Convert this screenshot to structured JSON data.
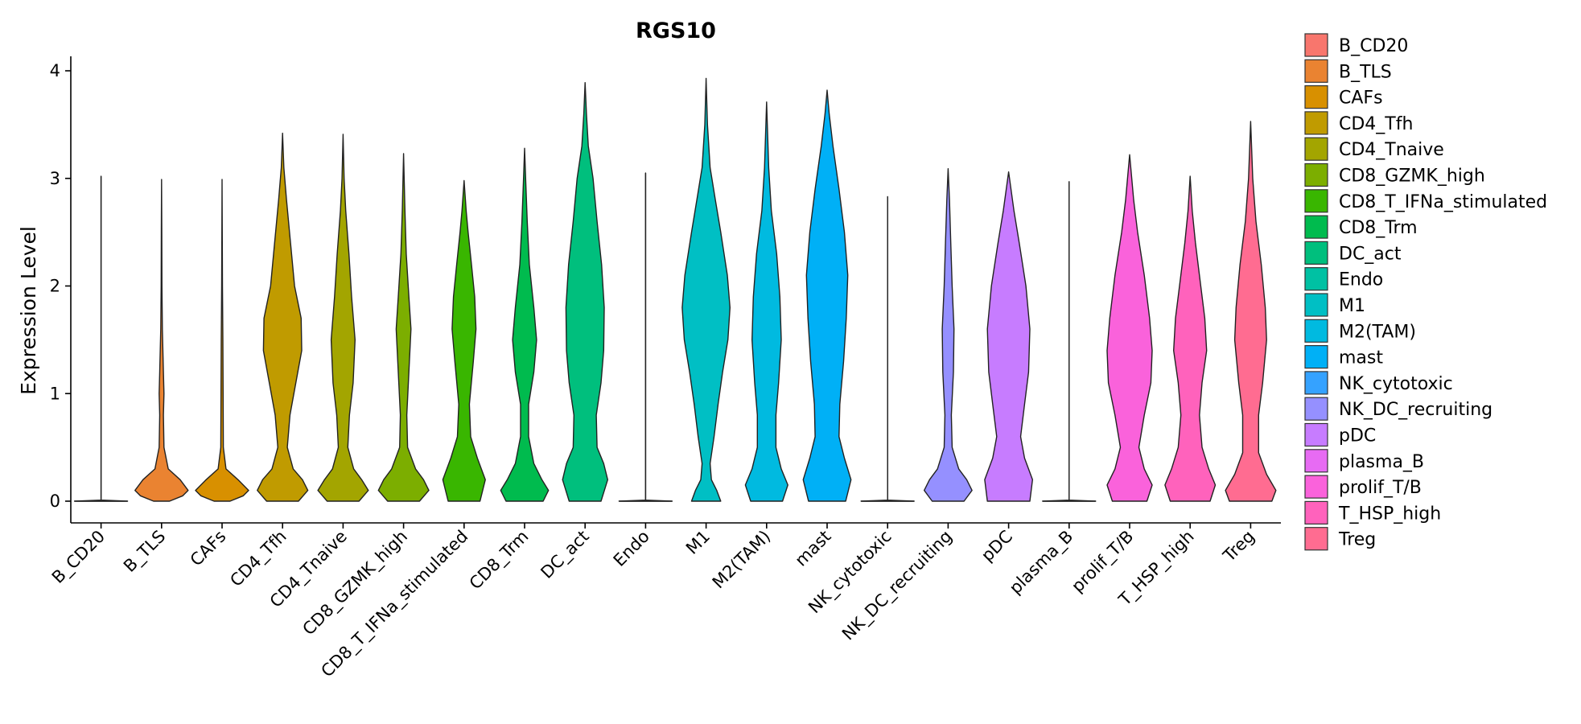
{
  "chart_data": {
    "type": "violin",
    "title": "RGS10",
    "xlabel": "",
    "ylabel": "Expression Level",
    "ylim": [
      -0.2,
      4.15
    ],
    "yticks": [
      0,
      1,
      2,
      3,
      4
    ],
    "legend_position": "right",
    "categories": [
      "B_CD20",
      "B_TLS",
      "CAFs",
      "CD4_Tfh",
      "CD4_Tnaive",
      "CD8_GZMK_high",
      "CD8_T_IFNa_stimulated",
      "CD8_Trm",
      "DC_act",
      "Endo",
      "M1",
      "M2(TAM)",
      "mast",
      "NK_cytotoxic",
      "NK_DC_recruiting",
      "pDC",
      "plasma_B",
      "prolif_T/B",
      "T_HSP_high",
      "Treg"
    ],
    "colors": [
      "#F8766D",
      "#EA8331",
      "#D89000",
      "#C09B00",
      "#A3A500",
      "#7CAE00",
      "#39B600",
      "#00BB4E",
      "#00BF7D",
      "#00C1A3",
      "#00BFC4",
      "#00BAE0",
      "#00B0F6",
      "#35A2FF",
      "#9590FF",
      "#C77CFF",
      "#E76BF3",
      "#FA62DB",
      "#FF62BC",
      "#FF6C91"
    ],
    "y_max": [
      3.02,
      2.99,
      2.99,
      3.42,
      3.41,
      3.23,
      2.98,
      3.28,
      3.89,
      3.05,
      3.93,
      3.71,
      3.82,
      2.83,
      3.09,
      3.06,
      2.97,
      3.22,
      3.02,
      3.53
    ],
    "density": [
      [
        [
          0,
          1.0
        ],
        [
          0.01,
          0.0
        ]
      ],
      [
        [
          0,
          0.3
        ],
        [
          0.05,
          0.8
        ],
        [
          0.1,
          1.0
        ],
        [
          0.2,
          0.7
        ],
        [
          0.3,
          0.25
        ],
        [
          0.5,
          0.09
        ],
        [
          0.8,
          0.07
        ],
        [
          1.0,
          0.09
        ],
        [
          1.2,
          0.07
        ],
        [
          1.6,
          0.03
        ],
        [
          2.0,
          0.015
        ],
        [
          2.5,
          0.008
        ],
        [
          2.99,
          0
        ]
      ],
      [
        [
          0,
          0.3
        ],
        [
          0.05,
          0.8
        ],
        [
          0.1,
          1.0
        ],
        [
          0.2,
          0.6
        ],
        [
          0.3,
          0.15
        ],
        [
          0.5,
          0.05
        ],
        [
          1.0,
          0.04
        ],
        [
          1.5,
          0.03
        ],
        [
          2.0,
          0.015
        ],
        [
          2.99,
          0
        ]
      ],
      [
        [
          0,
          0.6
        ],
        [
          0.1,
          0.95
        ],
        [
          0.2,
          0.75
        ],
        [
          0.3,
          0.4
        ],
        [
          0.5,
          0.18
        ],
        [
          0.8,
          0.28
        ],
        [
          1.1,
          0.5
        ],
        [
          1.4,
          0.72
        ],
        [
          1.7,
          0.7
        ],
        [
          2.0,
          0.45
        ],
        [
          2.4,
          0.3
        ],
        [
          2.8,
          0.15
        ],
        [
          3.1,
          0.05
        ],
        [
          3.42,
          0
        ]
      ],
      [
        [
          0,
          0.6
        ],
        [
          0.1,
          0.95
        ],
        [
          0.2,
          0.7
        ],
        [
          0.3,
          0.4
        ],
        [
          0.5,
          0.18
        ],
        [
          0.8,
          0.24
        ],
        [
          1.1,
          0.38
        ],
        [
          1.5,
          0.45
        ],
        [
          1.9,
          0.32
        ],
        [
          2.3,
          0.22
        ],
        [
          2.7,
          0.1
        ],
        [
          3.0,
          0.04
        ],
        [
          3.41,
          0
        ]
      ],
      [
        [
          0,
          0.6
        ],
        [
          0.1,
          0.95
        ],
        [
          0.2,
          0.75
        ],
        [
          0.3,
          0.45
        ],
        [
          0.5,
          0.15
        ],
        [
          0.8,
          0.12
        ],
        [
          1.2,
          0.2
        ],
        [
          1.6,
          0.28
        ],
        [
          1.9,
          0.2
        ],
        [
          2.3,
          0.1
        ],
        [
          2.7,
          0.05
        ],
        [
          3.23,
          0
        ]
      ],
      [
        [
          0,
          0.6
        ],
        [
          0.2,
          0.8
        ],
        [
          0.4,
          0.5
        ],
        [
          0.6,
          0.25
        ],
        [
          0.9,
          0.2
        ],
        [
          1.3,
          0.35
        ],
        [
          1.6,
          0.45
        ],
        [
          1.9,
          0.4
        ],
        [
          2.2,
          0.28
        ],
        [
          2.5,
          0.15
        ],
        [
          2.7,
          0.08
        ],
        [
          2.98,
          0
        ]
      ],
      [
        [
          0,
          0.7
        ],
        [
          0.1,
          0.9
        ],
        [
          0.2,
          0.65
        ],
        [
          0.35,
          0.35
        ],
        [
          0.6,
          0.15
        ],
        [
          0.9,
          0.15
        ],
        [
          1.2,
          0.35
        ],
        [
          1.5,
          0.45
        ],
        [
          1.8,
          0.35
        ],
        [
          2.2,
          0.18
        ],
        [
          2.6,
          0.1
        ],
        [
          3.0,
          0.04
        ],
        [
          3.28,
          0
        ]
      ],
      [
        [
          0,
          0.6
        ],
        [
          0.2,
          0.85
        ],
        [
          0.35,
          0.7
        ],
        [
          0.5,
          0.45
        ],
        [
          0.8,
          0.42
        ],
        [
          1.1,
          0.6
        ],
        [
          1.4,
          0.7
        ],
        [
          1.8,
          0.72
        ],
        [
          2.2,
          0.62
        ],
        [
          2.6,
          0.45
        ],
        [
          3.0,
          0.3
        ],
        [
          3.3,
          0.12
        ],
        [
          3.6,
          0.05
        ],
        [
          3.89,
          0
        ]
      ],
      [
        [
          0,
          1.0
        ],
        [
          0.01,
          0.0
        ]
      ],
      [
        [
          0,
          0.55
        ],
        [
          0.1,
          0.4
        ],
        [
          0.2,
          0.2
        ],
        [
          0.35,
          0.15
        ],
        [
          0.6,
          0.3
        ],
        [
          0.9,
          0.45
        ],
        [
          1.2,
          0.62
        ],
        [
          1.5,
          0.82
        ],
        [
          1.8,
          0.9
        ],
        [
          2.1,
          0.8
        ],
        [
          2.5,
          0.55
        ],
        [
          2.8,
          0.35
        ],
        [
          3.1,
          0.15
        ],
        [
          3.5,
          0.05
        ],
        [
          3.93,
          0
        ]
      ],
      [
        [
          0,
          0.6
        ],
        [
          0.15,
          0.8
        ],
        [
          0.3,
          0.55
        ],
        [
          0.5,
          0.35
        ],
        [
          0.8,
          0.35
        ],
        [
          1.1,
          0.45
        ],
        [
          1.5,
          0.55
        ],
        [
          1.9,
          0.5
        ],
        [
          2.3,
          0.38
        ],
        [
          2.7,
          0.18
        ],
        [
          3.1,
          0.08
        ],
        [
          3.71,
          0
        ]
      ],
      [
        [
          0,
          0.7
        ],
        [
          0.2,
          0.9
        ],
        [
          0.4,
          0.65
        ],
        [
          0.6,
          0.45
        ],
        [
          0.9,
          0.48
        ],
        [
          1.3,
          0.62
        ],
        [
          1.7,
          0.72
        ],
        [
          2.1,
          0.78
        ],
        [
          2.5,
          0.65
        ],
        [
          2.9,
          0.45
        ],
        [
          3.3,
          0.22
        ],
        [
          3.6,
          0.08
        ],
        [
          3.82,
          0
        ]
      ],
      [
        [
          0,
          1.0
        ],
        [
          0.01,
          0.0
        ]
      ],
      [
        [
          0,
          0.6
        ],
        [
          0.1,
          0.9
        ],
        [
          0.2,
          0.7
        ],
        [
          0.3,
          0.4
        ],
        [
          0.5,
          0.15
        ],
        [
          0.8,
          0.12
        ],
        [
          1.2,
          0.2
        ],
        [
          1.6,
          0.22
        ],
        [
          2.0,
          0.15
        ],
        [
          2.4,
          0.1
        ],
        [
          2.8,
          0.05
        ],
        [
          3.09,
          0
        ]
      ],
      [
        [
          0,
          0.8
        ],
        [
          0.2,
          0.9
        ],
        [
          0.4,
          0.6
        ],
        [
          0.6,
          0.45
        ],
        [
          0.9,
          0.6
        ],
        [
          1.2,
          0.75
        ],
        [
          1.6,
          0.8
        ],
        [
          2.0,
          0.65
        ],
        [
          2.4,
          0.4
        ],
        [
          2.7,
          0.2
        ],
        [
          3.06,
          0
        ]
      ],
      [
        [
          0,
          1.0
        ],
        [
          0.01,
          0.0
        ]
      ],
      [
        [
          0,
          0.65
        ],
        [
          0.15,
          0.85
        ],
        [
          0.3,
          0.55
        ],
        [
          0.5,
          0.35
        ],
        [
          0.8,
          0.55
        ],
        [
          1.1,
          0.8
        ],
        [
          1.4,
          0.85
        ],
        [
          1.7,
          0.75
        ],
        [
          2.1,
          0.55
        ],
        [
          2.5,
          0.3
        ],
        [
          2.8,
          0.15
        ],
        [
          3.22,
          0
        ]
      ],
      [
        [
          0,
          0.75
        ],
        [
          0.15,
          0.95
        ],
        [
          0.3,
          0.7
        ],
        [
          0.5,
          0.45
        ],
        [
          0.8,
          0.35
        ],
        [
          1.1,
          0.45
        ],
        [
          1.4,
          0.62
        ],
        [
          1.7,
          0.55
        ],
        [
          2.0,
          0.4
        ],
        [
          2.4,
          0.2
        ],
        [
          2.7,
          0.08
        ],
        [
          3.02,
          0
        ]
      ],
      [
        [
          0,
          0.8
        ],
        [
          0.1,
          0.95
        ],
        [
          0.25,
          0.6
        ],
        [
          0.45,
          0.3
        ],
        [
          0.8,
          0.3
        ],
        [
          1.1,
          0.45
        ],
        [
          1.5,
          0.6
        ],
        [
          1.8,
          0.55
        ],
        [
          2.2,
          0.4
        ],
        [
          2.6,
          0.2
        ],
        [
          3.0,
          0.08
        ],
        [
          3.53,
          0
        ]
      ]
    ]
  }
}
